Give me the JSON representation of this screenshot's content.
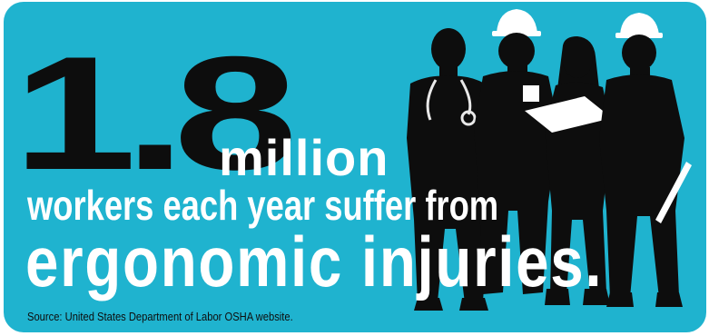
{
  "statistic": {
    "number": "1.8",
    "unit": "million",
    "line_two": "workers each year suffer from",
    "line_three": "ergonomic injuries."
  },
  "source": "Source: United States Department of Labor OSHA website.",
  "colors": {
    "background": "#1fb3cf",
    "number": "#0d0d0d",
    "text": "#ffffff",
    "silhouette": "#0d0d0d"
  },
  "icons": [
    "doctor-silhouette-icon",
    "construction-worker-silhouette-icon",
    "office-worker-silhouette-icon",
    "engineer-silhouette-icon"
  ]
}
